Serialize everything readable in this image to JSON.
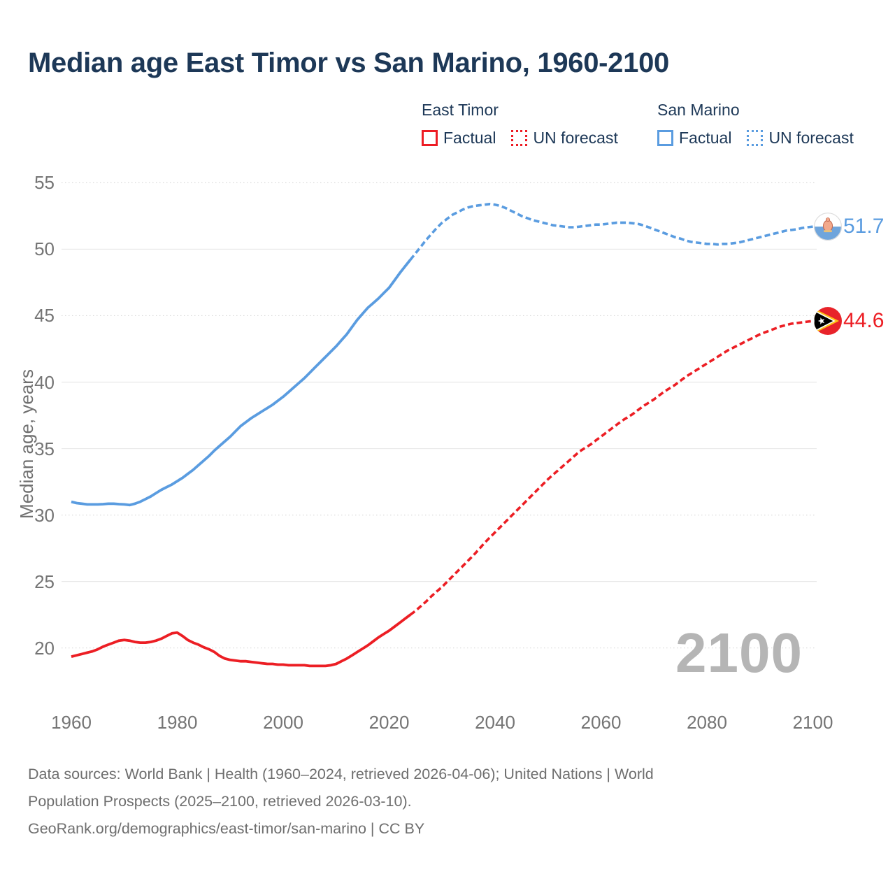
{
  "title": "Median age East Timor vs San Marino, 1960-2100",
  "legend": {
    "groups": [
      {
        "name": "East Timor",
        "color": "#ed1c24",
        "factual_label": "Factual",
        "forecast_label": "UN forecast"
      },
      {
        "name": "San Marino",
        "color": "#5a9ce0",
        "factual_label": "Factual",
        "forecast_label": "UN forecast"
      }
    ]
  },
  "y_axis": {
    "label": "Median age, years",
    "ticks": [
      55,
      50,
      45,
      40,
      35,
      30,
      25,
      20
    ]
  },
  "x_axis": {
    "ticks": [
      1960,
      1980,
      2000,
      2020,
      2040,
      2060,
      2080,
      2100
    ]
  },
  "end_labels": {
    "san_marino": "51.7",
    "east_timor": "44.6"
  },
  "watermark": "2100",
  "footer": {
    "lines": [
      "Data sources: World Bank | Health (1960–2024, retrieved 2026-04-06); United Nations | World",
      "Population Prospects (2025–2100, retrieved 2026-03-10).",
      "GeoRank.org/demographics/east-timor/san-marino | CC BY"
    ]
  },
  "markers": {
    "san_marino": {
      "flag_top": "#ffffff",
      "flag_bottom": "#6fa5dc",
      "emblem": "#f2a98c",
      "emblem_dark": "#c2674f",
      "ring": "#dcdcdc"
    },
    "east_timor": {
      "field": "#e8232a",
      "triangle": "#000000",
      "chevron": "#fdc116",
      "star": "#ffffff"
    }
  },
  "chart_data": {
    "type": "line",
    "title": "Median age East Timor vs San Marino, 1960-2100",
    "xlabel": "",
    "ylabel": "Median age, years",
    "xlim": [
      1960,
      2100
    ],
    "ylim": [
      18,
      56
    ],
    "xticks": [
      1960,
      1980,
      2000,
      2020,
      2040,
      2060,
      2080,
      2100
    ],
    "yticks": [
      20,
      25,
      30,
      35,
      40,
      45,
      50,
      55
    ],
    "grid": true,
    "legend_position": "top",
    "end_values": {
      "san_marino_2100": 51.7,
      "east_timor_2100": 44.6
    },
    "series": [
      {
        "name": "San Marino — Factual",
        "slug": "san-marino-factual",
        "color": "#5a9ce0",
        "style": "solid",
        "points": [
          [
            1960,
            31.0
          ],
          [
            1961,
            30.9
          ],
          [
            1962,
            30.85
          ],
          [
            1963,
            30.8
          ],
          [
            1964,
            30.8
          ],
          [
            1965,
            30.8
          ],
          [
            1966,
            30.82
          ],
          [
            1967,
            30.85
          ],
          [
            1968,
            30.85
          ],
          [
            1969,
            30.82
          ],
          [
            1970,
            30.8
          ],
          [
            1971,
            30.75
          ],
          [
            1972,
            30.85
          ],
          [
            1973,
            31.0
          ],
          [
            1974,
            31.2
          ],
          [
            1975,
            31.4
          ],
          [
            1976,
            31.65
          ],
          [
            1977,
            31.9
          ],
          [
            1978,
            32.1
          ],
          [
            1979,
            32.3
          ],
          [
            1980,
            32.55
          ],
          [
            1981,
            32.8
          ],
          [
            1982,
            33.1
          ],
          [
            1983,
            33.4
          ],
          [
            1984,
            33.75
          ],
          [
            1985,
            34.1
          ],
          [
            1986,
            34.45
          ],
          [
            1987,
            34.85
          ],
          [
            1988,
            35.2
          ],
          [
            1989,
            35.55
          ],
          [
            1990,
            35.9
          ],
          [
            1991,
            36.3
          ],
          [
            1992,
            36.7
          ],
          [
            1993,
            37.0
          ],
          [
            1994,
            37.3
          ],
          [
            1995,
            37.55
          ],
          [
            1996,
            37.8
          ],
          [
            1997,
            38.05
          ],
          [
            1998,
            38.3
          ],
          [
            1999,
            38.6
          ],
          [
            2000,
            38.9
          ],
          [
            2001,
            39.25
          ],
          [
            2002,
            39.6
          ],
          [
            2003,
            39.95
          ],
          [
            2004,
            40.3
          ],
          [
            2005,
            40.7
          ],
          [
            2006,
            41.1
          ],
          [
            2007,
            41.5
          ],
          [
            2008,
            41.9
          ],
          [
            2009,
            42.3
          ],
          [
            2010,
            42.7
          ],
          [
            2011,
            43.15
          ],
          [
            2012,
            43.6
          ],
          [
            2013,
            44.15
          ],
          [
            2014,
            44.7
          ],
          [
            2015,
            45.15
          ],
          [
            2016,
            45.6
          ],
          [
            2017,
            45.95
          ],
          [
            2018,
            46.3
          ],
          [
            2019,
            46.7
          ],
          [
            2020,
            47.1
          ],
          [
            2021,
            47.65
          ],
          [
            2022,
            48.2
          ],
          [
            2023,
            48.7
          ],
          [
            2024,
            49.2
          ]
        ]
      },
      {
        "name": "San Marino — UN forecast",
        "slug": "san-marino-forecast",
        "color": "#5a9ce0",
        "style": "dashed",
        "points": [
          [
            2024,
            49.2
          ],
          [
            2025,
            49.7
          ],
          [
            2026,
            50.2
          ],
          [
            2027,
            50.7
          ],
          [
            2028,
            51.15
          ],
          [
            2029,
            51.6
          ],
          [
            2030,
            52.0
          ],
          [
            2031,
            52.3
          ],
          [
            2032,
            52.6
          ],
          [
            2033,
            52.8
          ],
          [
            2034,
            53.0
          ],
          [
            2035,
            53.15
          ],
          [
            2036,
            53.25
          ],
          [
            2037,
            53.3
          ],
          [
            2038,
            53.35
          ],
          [
            2039,
            53.4
          ],
          [
            2040,
            53.35
          ],
          [
            2041,
            53.25
          ],
          [
            2042,
            53.1
          ],
          [
            2043,
            52.9
          ],
          [
            2044,
            52.7
          ],
          [
            2045,
            52.5
          ],
          [
            2046,
            52.35
          ],
          [
            2047,
            52.2
          ],
          [
            2048,
            52.1
          ],
          [
            2049,
            52.0
          ],
          [
            2050,
            51.9
          ],
          [
            2051,
            51.8
          ],
          [
            2052,
            51.75
          ],
          [
            2053,
            51.7
          ],
          [
            2054,
            51.65
          ],
          [
            2055,
            51.65
          ],
          [
            2056,
            51.7
          ],
          [
            2057,
            51.75
          ],
          [
            2058,
            51.8
          ],
          [
            2059,
            51.85
          ],
          [
            2060,
            51.85
          ],
          [
            2061,
            51.9
          ],
          [
            2062,
            51.95
          ],
          [
            2063,
            52.0
          ],
          [
            2064,
            52.0
          ],
          [
            2065,
            52.0
          ],
          [
            2066,
            51.95
          ],
          [
            2067,
            51.9
          ],
          [
            2068,
            51.8
          ],
          [
            2069,
            51.65
          ],
          [
            2070,
            51.5
          ],
          [
            2071,
            51.35
          ],
          [
            2072,
            51.2
          ],
          [
            2073,
            51.05
          ],
          [
            2074,
            50.9
          ],
          [
            2075,
            50.8
          ],
          [
            2076,
            50.65
          ],
          [
            2077,
            50.55
          ],
          [
            2078,
            50.5
          ],
          [
            2079,
            50.45
          ],
          [
            2080,
            50.4
          ],
          [
            2081,
            50.4
          ],
          [
            2082,
            50.35
          ],
          [
            2083,
            50.4
          ],
          [
            2084,
            50.4
          ],
          [
            2085,
            50.45
          ],
          [
            2086,
            50.5
          ],
          [
            2087,
            50.6
          ],
          [
            2088,
            50.7
          ],
          [
            2089,
            50.8
          ],
          [
            2090,
            50.9
          ],
          [
            2091,
            51.0
          ],
          [
            2092,
            51.1
          ],
          [
            2093,
            51.2
          ],
          [
            2094,
            51.3
          ],
          [
            2095,
            51.4
          ],
          [
            2096,
            51.45
          ],
          [
            2097,
            51.5
          ],
          [
            2098,
            51.6
          ],
          [
            2099,
            51.65
          ],
          [
            2100,
            51.7
          ]
        ]
      },
      {
        "name": "East Timor — Factual",
        "slug": "east-timor-factual",
        "color": "#ec1e24",
        "style": "solid",
        "points": [
          [
            1960,
            19.35
          ],
          [
            1961,
            19.45
          ],
          [
            1962,
            19.55
          ],
          [
            1963,
            19.65
          ],
          [
            1964,
            19.75
          ],
          [
            1965,
            19.9
          ],
          [
            1966,
            20.1
          ],
          [
            1967,
            20.25
          ],
          [
            1968,
            20.4
          ],
          [
            1969,
            20.55
          ],
          [
            1970,
            20.6
          ],
          [
            1971,
            20.55
          ],
          [
            1972,
            20.45
          ],
          [
            1973,
            20.4
          ],
          [
            1974,
            20.4
          ],
          [
            1975,
            20.45
          ],
          [
            1976,
            20.55
          ],
          [
            1977,
            20.7
          ],
          [
            1978,
            20.9
          ],
          [
            1979,
            21.1
          ],
          [
            1980,
            21.15
          ],
          [
            1981,
            20.9
          ],
          [
            1982,
            20.6
          ],
          [
            1983,
            20.4
          ],
          [
            1984,
            20.25
          ],
          [
            1985,
            20.05
          ],
          [
            1986,
            19.9
          ],
          [
            1987,
            19.7
          ],
          [
            1988,
            19.4
          ],
          [
            1989,
            19.2
          ],
          [
            1990,
            19.1
          ],
          [
            1991,
            19.05
          ],
          [
            1992,
            19.0
          ],
          [
            1993,
            19.0
          ],
          [
            1994,
            18.95
          ],
          [
            1995,
            18.9
          ],
          [
            1996,
            18.85
          ],
          [
            1997,
            18.8
          ],
          [
            1998,
            18.8
          ],
          [
            1999,
            18.75
          ],
          [
            2000,
            18.75
          ],
          [
            2001,
            18.7
          ],
          [
            2002,
            18.7
          ],
          [
            2003,
            18.7
          ],
          [
            2004,
            18.7
          ],
          [
            2005,
            18.65
          ],
          [
            2006,
            18.65
          ],
          [
            2007,
            18.65
          ],
          [
            2008,
            18.65
          ],
          [
            2009,
            18.7
          ],
          [
            2010,
            18.8
          ],
          [
            2011,
            19.0
          ],
          [
            2012,
            19.2
          ],
          [
            2013,
            19.45
          ],
          [
            2014,
            19.7
          ],
          [
            2015,
            19.95
          ],
          [
            2016,
            20.2
          ],
          [
            2017,
            20.5
          ],
          [
            2018,
            20.8
          ],
          [
            2019,
            21.05
          ],
          [
            2020,
            21.3
          ],
          [
            2021,
            21.6
          ],
          [
            2022,
            21.9
          ],
          [
            2023,
            22.2
          ],
          [
            2024,
            22.5
          ]
        ]
      },
      {
        "name": "East Timor — UN forecast",
        "slug": "east-timor-forecast",
        "color": "#ec1e24",
        "style": "dashed",
        "points": [
          [
            2024,
            22.5
          ],
          [
            2025,
            22.8
          ],
          [
            2026,
            23.15
          ],
          [
            2027,
            23.5
          ],
          [
            2028,
            23.9
          ],
          [
            2029,
            24.25
          ],
          [
            2030,
            24.6
          ],
          [
            2031,
            25.0
          ],
          [
            2032,
            25.4
          ],
          [
            2033,
            25.8
          ],
          [
            2034,
            26.2
          ],
          [
            2035,
            26.6
          ],
          [
            2036,
            27.0
          ],
          [
            2037,
            27.45
          ],
          [
            2038,
            27.9
          ],
          [
            2039,
            28.3
          ],
          [
            2040,
            28.7
          ],
          [
            2041,
            29.1
          ],
          [
            2042,
            29.5
          ],
          [
            2043,
            29.9
          ],
          [
            2044,
            30.3
          ],
          [
            2045,
            30.7
          ],
          [
            2046,
            31.1
          ],
          [
            2047,
            31.5
          ],
          [
            2048,
            31.9
          ],
          [
            2049,
            32.3
          ],
          [
            2050,
            32.7
          ],
          [
            2051,
            33.05
          ],
          [
            2052,
            33.4
          ],
          [
            2053,
            33.75
          ],
          [
            2054,
            34.1
          ],
          [
            2055,
            34.45
          ],
          [
            2056,
            34.8
          ],
          [
            2057,
            35.05
          ],
          [
            2058,
            35.3
          ],
          [
            2059,
            35.6
          ],
          [
            2060,
            35.9
          ],
          [
            2061,
            36.2
          ],
          [
            2062,
            36.5
          ],
          [
            2063,
            36.8
          ],
          [
            2064,
            37.1
          ],
          [
            2065,
            37.35
          ],
          [
            2066,
            37.6
          ],
          [
            2067,
            37.9
          ],
          [
            2068,
            38.2
          ],
          [
            2069,
            38.45
          ],
          [
            2070,
            38.7
          ],
          [
            2071,
            39.0
          ],
          [
            2072,
            39.3
          ],
          [
            2073,
            39.55
          ],
          [
            2074,
            39.8
          ],
          [
            2075,
            40.1
          ],
          [
            2076,
            40.4
          ],
          [
            2077,
            40.65
          ],
          [
            2078,
            40.9
          ],
          [
            2079,
            41.15
          ],
          [
            2080,
            41.4
          ],
          [
            2081,
            41.65
          ],
          [
            2082,
            41.9
          ],
          [
            2083,
            42.15
          ],
          [
            2084,
            42.4
          ],
          [
            2085,
            42.6
          ],
          [
            2086,
            42.8
          ],
          [
            2087,
            43.0
          ],
          [
            2088,
            43.2
          ],
          [
            2089,
            43.4
          ],
          [
            2090,
            43.6
          ],
          [
            2091,
            43.75
          ],
          [
            2092,
            43.9
          ],
          [
            2093,
            44.05
          ],
          [
            2094,
            44.2
          ],
          [
            2095,
            44.3
          ],
          [
            2096,
            44.4
          ],
          [
            2097,
            44.45
          ],
          [
            2098,
            44.5
          ],
          [
            2099,
            44.55
          ],
          [
            2100,
            44.6
          ]
        ]
      }
    ]
  }
}
